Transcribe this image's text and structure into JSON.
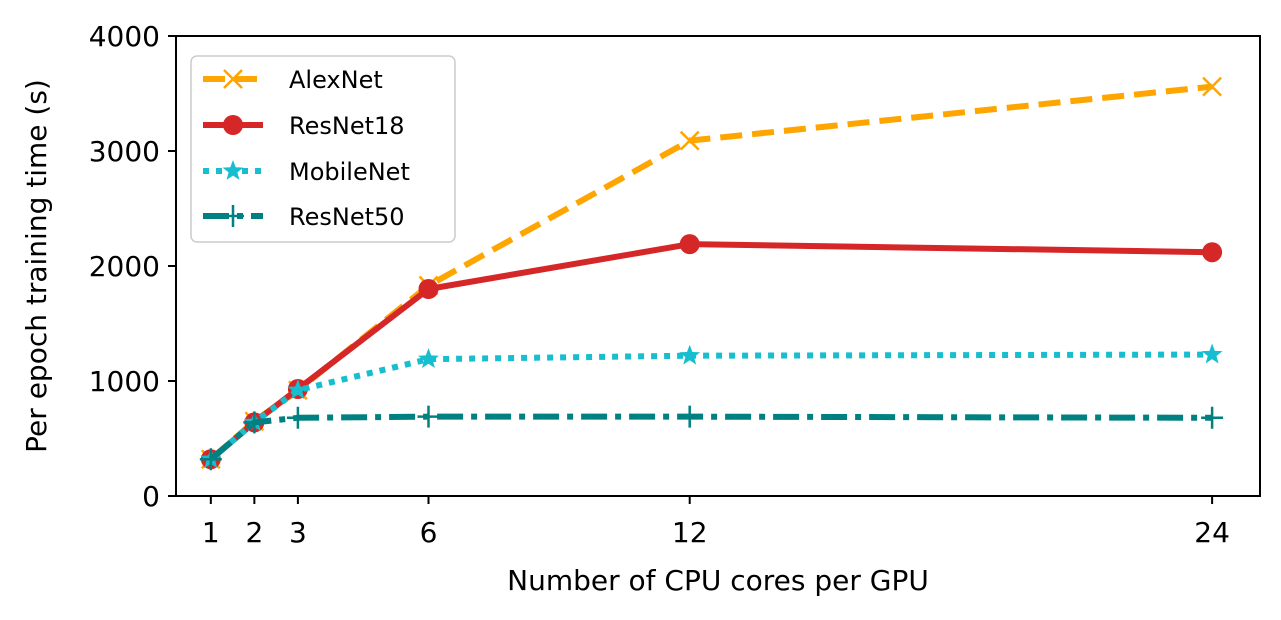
{
  "chart_data": {
    "type": "line",
    "title": "",
    "xlabel": "Number of CPU cores per GPU",
    "ylabel": "Per epoch training time (s)",
    "x": [
      1,
      2,
      3,
      6,
      12,
      24
    ],
    "x_tick_labels": [
      "1",
      "2",
      "3",
      "6",
      "12",
      "24"
    ],
    "xlim": [
      0.2,
      25.1
    ],
    "ylim": [
      0,
      4000
    ],
    "y_ticks": [
      0,
      1000,
      2000,
      3000,
      4000
    ],
    "y_tick_labels": [
      "0",
      "1000",
      "2000",
      "3000",
      "4000"
    ],
    "grid": false,
    "legend_position": "upper-left",
    "series": [
      {
        "name": "AlexNet",
        "color": "#FFA500",
        "line_style": "dashed",
        "marker": "x",
        "values": [
          320,
          650,
          920,
          1830,
          3090,
          3560
        ]
      },
      {
        "name": "ResNet18",
        "color": "#D62728",
        "line_style": "solid",
        "marker": "circle",
        "values": [
          320,
          640,
          930,
          1800,
          2190,
          2120
        ]
      },
      {
        "name": "MobileNet",
        "color": "#17BECF",
        "line_style": "dotted",
        "marker": "star",
        "values": [
          320,
          640,
          920,
          1190,
          1220,
          1230
        ]
      },
      {
        "name": "ResNet50",
        "color": "#008080",
        "line_style": "dashdot",
        "marker": "plus",
        "values": [
          320,
          640,
          680,
          690,
          690,
          680
        ]
      }
    ]
  }
}
